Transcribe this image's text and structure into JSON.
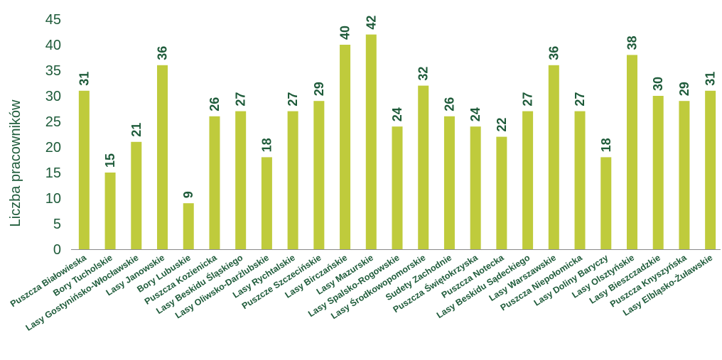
{
  "chart_data": {
    "type": "bar",
    "ylabel": "Liczba pracowników",
    "xlabel": "",
    "ylim": [
      0,
      45
    ],
    "yticks": [
      0,
      5,
      10,
      15,
      20,
      25,
      30,
      35,
      40,
      45
    ],
    "grid": false,
    "legend": "none",
    "categories": [
      "Puszcza Białowieska",
      "Bory Tucholskie",
      "Lasy Gostynińsko-Włocławskie",
      "Lasy Janowskie",
      "Bory Lubuskie",
      "Puszcza Kozienicka",
      "Lasy Beskidu Śląskiego",
      "Lasy Oliwsko-Darżlubskie",
      "Lasy Rychtalskie",
      "Puszcze Szczecińskie",
      "Lasy Birczańskie",
      "Lasy Mazurskie",
      "Lasy Spalsko-Rogowskie",
      "Lasy Środkowopomorskie",
      "Sudety Zachodnie",
      "Puszcza Świętokrzyska",
      "Puszcza Notecka",
      "Lasy Beskidu Sądeckiego",
      "Lasy Warszawskie",
      "Puszcza Niepołomicka",
      "Lasy Doliny Baryczy",
      "Lasy Olsztyńskie",
      "Lasy Bieszczadzkie",
      "Puszcza Knyszyńska",
      "Lasy Elbląsko-Żuławskie"
    ],
    "values": [
      31,
      15,
      21,
      36,
      9,
      26,
      27,
      18,
      27,
      29,
      40,
      42,
      24,
      32,
      26,
      24,
      22,
      27,
      36,
      27,
      18,
      38,
      30,
      29,
      31
    ]
  },
  "colors": {
    "bar": "#bfcb3c",
    "text": "#1e5b3a",
    "axis": "#8a8a8a"
  }
}
